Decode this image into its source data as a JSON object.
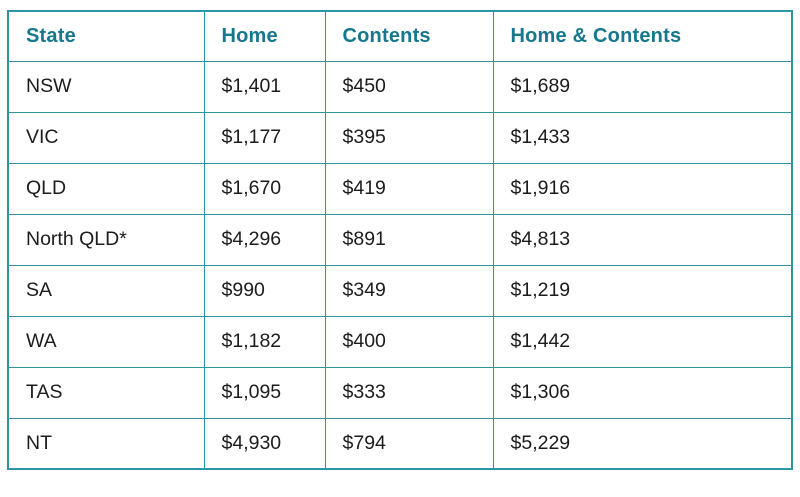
{
  "colors": {
    "border": "#2b96a2",
    "header_text": "#15788c",
    "cell_text": "#1c1c1e",
    "background": "#ffffff"
  },
  "table": {
    "columns": [
      {
        "key": "state",
        "label": "State"
      },
      {
        "key": "home",
        "label": "Home"
      },
      {
        "key": "contents",
        "label": "Contents"
      },
      {
        "key": "home_contents",
        "label": "Home & Contents"
      }
    ],
    "rows": [
      {
        "state": "NSW",
        "home": "$1,401",
        "contents": "$450",
        "home_contents": "$1,689"
      },
      {
        "state": "VIC",
        "home": "$1,177",
        "contents": "$395",
        "home_contents": "$1,433"
      },
      {
        "state": "QLD",
        "home": "$1,670",
        "contents": "$419",
        "home_contents": "$1,916"
      },
      {
        "state": "North QLD*",
        "home": "$4,296",
        "contents": "$891",
        "home_contents": "$4,813"
      },
      {
        "state": "SA",
        "home": "$990",
        "contents": "$349",
        "home_contents": "$1,219"
      },
      {
        "state": "WA",
        "home": "$1,182",
        "contents": "$400",
        "home_contents": "$1,442"
      },
      {
        "state": "TAS",
        "home": "$1,095",
        "contents": "$333",
        "home_contents": "$1,306"
      },
      {
        "state": "NT",
        "home": "$4,930",
        "contents": "$794",
        "home_contents": "$5,229"
      }
    ]
  },
  "chart_data": {
    "type": "table",
    "columns": [
      "State",
      "Home",
      "Contents",
      "Home & Contents"
    ],
    "categories": [
      "NSW",
      "VIC",
      "QLD",
      "North QLD*",
      "SA",
      "WA",
      "TAS",
      "NT"
    ],
    "series": [
      {
        "name": "Home",
        "values": [
          1401,
          1177,
          1670,
          4296,
          990,
          1182,
          1095,
          4930
        ]
      },
      {
        "name": "Contents",
        "values": [
          450,
          395,
          419,
          891,
          349,
          400,
          333,
          794
        ]
      },
      {
        "name": "Home & Contents",
        "values": [
          1689,
          1433,
          1916,
          4813,
          1219,
          1442,
          1306,
          5229
        ]
      }
    ],
    "value_prefix": "$"
  }
}
